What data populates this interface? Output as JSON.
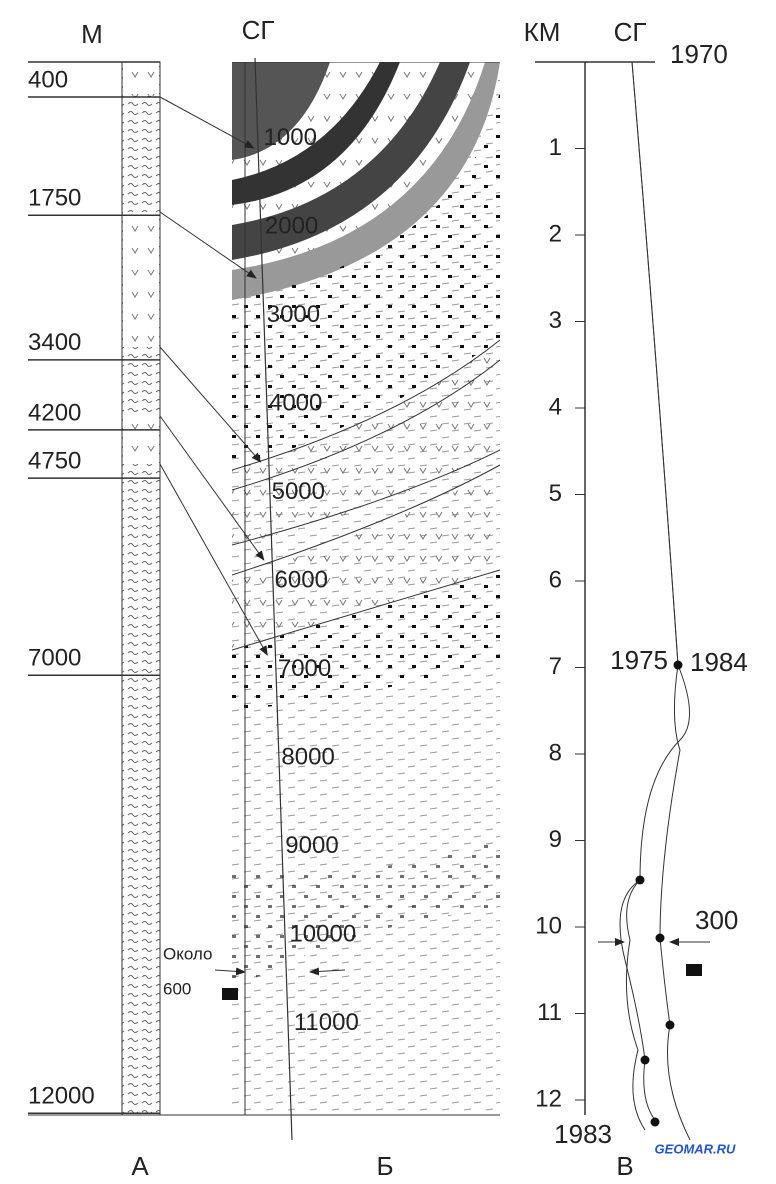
{
  "column_a": {
    "header": "М",
    "depths": [
      400,
      1750,
      3400,
      4200,
      4750,
      7000,
      12000
    ],
    "label": "А"
  },
  "column_b": {
    "header": "СГ",
    "depths": [
      1000,
      2000,
      3000,
      4000,
      5000,
      6000,
      7000,
      8000,
      9000,
      10000,
      11000
    ],
    "note": [
      "Около",
      "600"
    ],
    "label": "Б"
  },
  "column_c": {
    "header_left": "КМ",
    "header_right": "СГ",
    "start_year": "1970",
    "km": [
      1,
      2,
      3,
      4,
      5,
      6,
      7,
      8,
      9,
      10,
      11,
      12
    ],
    "years": [
      "1975",
      "1984",
      "1983"
    ],
    "width_note": "300",
    "label": "В"
  },
  "watermark": "GEOMAR.RU"
}
